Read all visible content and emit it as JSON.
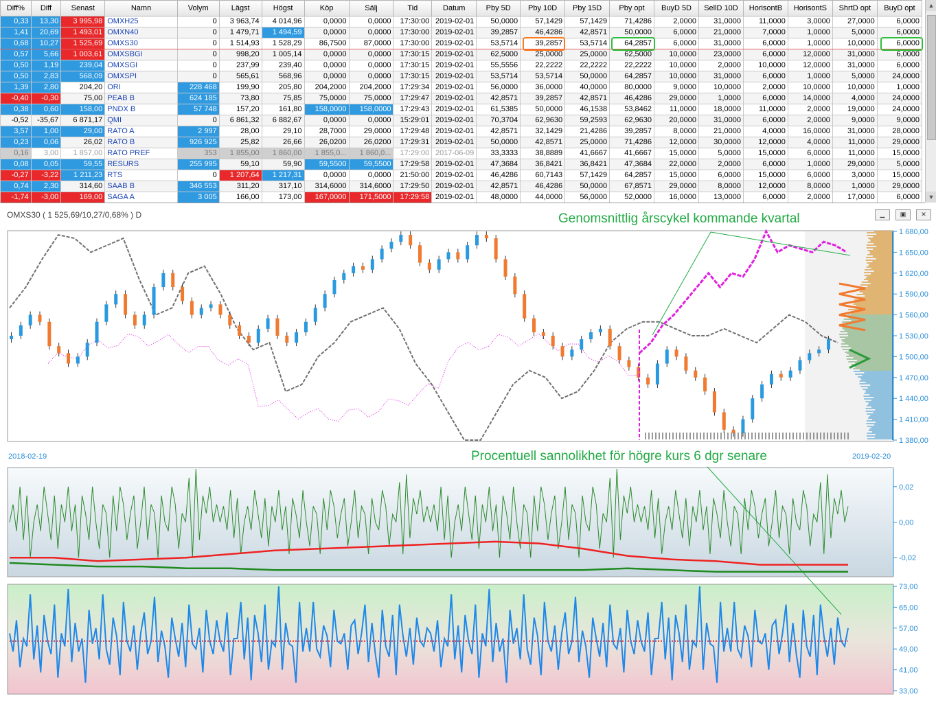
{
  "table": {
    "columns": [
      "Diff%",
      "Diff",
      "Senast",
      "Namn",
      "Volym",
      "Lägst",
      "Högst",
      "Köp",
      "Sälj",
      "Tid",
      "Datum",
      "Pby 5D",
      "Pby 10D",
      "Pby 15D",
      "Pby opt",
      "BuyD 5D",
      "SellD 10D",
      "HorisontB",
      "HorisontS",
      "ShrtD opt",
      "BuyD opt"
    ],
    "rows": [
      [
        "0,33",
        "13,30",
        "3 995,98",
        "OMXH25",
        "0",
        "3 963,74",
        "4 014,96",
        "0,0000",
        "0,0000",
        "17:30:00",
        "2019-02-01",
        "50,0000",
        "57,1429",
        "57,1429",
        "71,4286",
        "2,0000",
        "31,0000",
        "11,0000",
        "3,0000",
        "27,0000",
        "6,0000"
      ],
      [
        "1,41",
        "20,69",
        "1 493,01",
        "OMXN40",
        "0",
        "1 479,71",
        "1 494,59",
        "0,0000",
        "0,0000",
        "17:30:00",
        "2019-02-01",
        "39,2857",
        "46,4286",
        "42,8571",
        "50,0000",
        "6,0000",
        "21,0000",
        "7,0000",
        "1,0000",
        "5,0000",
        "6,0000"
      ],
      [
        "0,68",
        "10,27",
        "1 525,69",
        "OMXS30",
        "0",
        "1 514,93",
        "1 528,29",
        "86,7500",
        "87,0000",
        "17:30:00",
        "2019-02-01",
        "53,5714",
        "39,2857",
        "53,5714",
        "64,2857",
        "6,0000",
        "31,0000",
        "6,0000",
        "1,0000",
        "10,0000",
        "6,0000"
      ],
      [
        "0,57",
        "5,66",
        "1 003,61",
        "OMXSBGI",
        "0",
        "998,20",
        "1 005,14",
        "0,0000",
        "0,0000",
        "17:30:15",
        "2019-02-01",
        "62,5000",
        "25,0000",
        "25,0000",
        "62,5000",
        "10,0000",
        "23,0000",
        "6,0000",
        "12,0000",
        "31,0000",
        "6,0000"
      ],
      [
        "0,50",
        "1,19",
        "239,04",
        "OMXSGI",
        "0",
        "237,99",
        "239,40",
        "0,0000",
        "0,0000",
        "17:30:15",
        "2019-02-01",
        "55,5556",
        "22,2222",
        "22,2222",
        "22,2222",
        "10,0000",
        "2,0000",
        "10,0000",
        "12,0000",
        "31,0000",
        "6,0000"
      ],
      [
        "0,50",
        "2,83",
        "568,09",
        "OMXSPI",
        "0",
        "565,61",
        "568,96",
        "0,0000",
        "0,0000",
        "17:30:15",
        "2019-02-01",
        "53,5714",
        "53,5714",
        "50,0000",
        "64,2857",
        "10,0000",
        "31,0000",
        "6,0000",
        "1,0000",
        "5,0000",
        "24,0000"
      ],
      [
        "1,39",
        "2,80",
        "204,20",
        "ORI",
        "228 468",
        "199,90",
        "205,80",
        "204,2000",
        "204,2000",
        "17:29:34",
        "2019-02-01",
        "56,0000",
        "36,0000",
        "40,0000",
        "80,0000",
        "9,0000",
        "10,0000",
        "2,0000",
        "10,0000",
        "10,0000",
        "1,0000"
      ],
      [
        "-0,40",
        "-0,30",
        "75,00",
        "PEAB B",
        "624 185",
        "73,80",
        "75,85",
        "75,0000",
        "75,0000",
        "17:29:47",
        "2019-02-01",
        "42,8571",
        "39,2857",
        "42,8571",
        "46,4286",
        "29,0000",
        "1,0000",
        "6,0000",
        "14,0000",
        "4,0000",
        "24,0000"
      ],
      [
        "0,38",
        "0,60",
        "158,00",
        "PNDX B",
        "57 748",
        "157,20",
        "161,80",
        "158,0000",
        "158,0000",
        "17:29:43",
        "2019-02-01",
        "61,5385",
        "50,0000",
        "46,1538",
        "53,8462",
        "11,0000",
        "18,0000",
        "11,0000",
        "2,0000",
        "19,0000",
        "24,0000"
      ],
      [
        "-0,52",
        "-35,67",
        "6 871,17",
        "QMI",
        "0",
        "6 861,32",
        "6 882,67",
        "0,0000",
        "0,0000",
        "15:29:01",
        "2019-02-01",
        "70,3704",
        "62,9630",
        "59,2593",
        "62,9630",
        "20,0000",
        "31,0000",
        "6,0000",
        "2,0000",
        "9,0000",
        "9,0000"
      ],
      [
        "3,57",
        "1,00",
        "29,00",
        "RATO A",
        "2 997",
        "28,00",
        "29,10",
        "28,7000",
        "29,0000",
        "17:29:48",
        "2019-02-01",
        "42,8571",
        "32,1429",
        "21,4286",
        "39,2857",
        "8,0000",
        "21,0000",
        "4,0000",
        "16,0000",
        "31,0000",
        "28,0000"
      ],
      [
        "0,23",
        "0,06",
        "26,02",
        "RATO B",
        "926 925",
        "25,82",
        "26,66",
        "26,0200",
        "26,0200",
        "17:29:31",
        "2019-02-01",
        "50,0000",
        "42,8571",
        "25,0000",
        "71,4286",
        "12,0000",
        "30,0000",
        "12,0000",
        "4,0000",
        "11,0000",
        "29,0000"
      ],
      [
        "0,16",
        "3,00",
        "1 857,00",
        "RATO PREF",
        "353",
        "1 855,00",
        "1 860,00",
        "1 855,0...",
        "1 860,0...",
        "17:29:00",
        "2017-06-09",
        "33,3333",
        "38,8889",
        "41,6667",
        "41,6667",
        "15,0000",
        "5,0000",
        "15,0000",
        "6,0000",
        "11,0000",
        "15,0000"
      ],
      [
        "0,08",
        "0,05",
        "59,55",
        "RESURS",
        "255 995",
        "59,10",
        "59,90",
        "59,5500",
        "59,5500",
        "17:29:58",
        "2019-02-01",
        "47,3684",
        "36,8421",
        "36,8421",
        "47,3684",
        "22,0000",
        "2,0000",
        "6,0000",
        "1,0000",
        "29,0000",
        "5,0000"
      ],
      [
        "-0,27",
        "-3,22",
        "1 211,23",
        "RTS",
        "0",
        "1 207,64",
        "1 217,31",
        "0,0000",
        "0,0000",
        "21:50:00",
        "2019-02-01",
        "46,4286",
        "60,7143",
        "57,1429",
        "64,2857",
        "15,0000",
        "6,0000",
        "15,0000",
        "6,0000",
        "3,0000",
        "15,0000"
      ],
      [
        "0,74",
        "2,30",
        "314,60",
        "SAAB B",
        "346 553",
        "311,20",
        "317,10",
        "314,6000",
        "314,6000",
        "17:29:50",
        "2019-02-01",
        "42,8571",
        "46,4286",
        "50,0000",
        "67,8571",
        "29,0000",
        "8,0000",
        "12,0000",
        "8,0000",
        "1,0000",
        "29,0000"
      ],
      [
        "-1,74",
        "-3,00",
        "169,00",
        "SAGA A",
        "3 005",
        "166,00",
        "173,00",
        "167,0000",
        "171,5000",
        "17:29:58",
        "2019-02-01",
        "48,0000",
        "44,0000",
        "56,0000",
        "52,0000",
        "16,0000",
        "13,0000",
        "6,0000",
        "2,0000",
        "17,0000",
        "6,0000"
      ]
    ],
    "cell_styles": [
      [
        "b-blue",
        "b-blue",
        "b-red",
        "",
        "",
        "",
        "",
        "",
        "",
        "",
        "",
        "",
        "",
        "",
        "",
        "",
        "",
        "",
        "",
        "",
        ""
      ],
      [
        "b-blue",
        "b-blue",
        "b-red",
        "",
        "",
        "",
        "b-blue",
        "",
        "",
        "",
        "",
        "",
        "",
        "",
        "",
        "",
        "",
        "",
        "",
        "",
        ""
      ],
      [
        "b-blue",
        "b-blue",
        "b-red",
        "",
        "",
        "",
        "",
        "",
        "",
        "",
        "",
        "",
        "",
        "",
        "",
        "",
        "",
        "",
        "",
        "",
        ""
      ],
      [
        "b-blue",
        "b-blue",
        "b-red",
        "",
        "",
        "",
        "",
        "",
        "",
        "",
        "",
        "",
        "",
        "",
        "",
        "",
        "",
        "",
        "",
        "",
        ""
      ],
      [
        "b-blue",
        "b-blue",
        "b-blue",
        "",
        "",
        "",
        "",
        "",
        "",
        "",
        "",
        "",
        "",
        "",
        "",
        "",
        "",
        "",
        "",
        "",
        ""
      ],
      [
        "b-blue",
        "b-blue",
        "b-blue",
        "",
        "",
        "",
        "",
        "",
        "",
        "",
        "",
        "",
        "",
        "",
        "",
        "",
        "",
        "",
        "",
        "",
        ""
      ],
      [
        "b-blue",
        "b-blue",
        "",
        "",
        "b-blue",
        "",
        "",
        "",
        "",
        "",
        "",
        "",
        "",
        "",
        "",
        "",
        "",
        "",
        "",
        "",
        ""
      ],
      [
        "b-red",
        "b-red",
        "",
        "",
        "b-blue",
        "",
        "",
        "",
        "",
        "",
        "",
        "",
        "",
        "",
        "",
        "",
        "",
        "",
        "",
        "",
        ""
      ],
      [
        "b-blue",
        "b-blue",
        "b-blue",
        "",
        "b-blue",
        "",
        "",
        "b-blue",
        "b-blue",
        "",
        "",
        "",
        "",
        "",
        "",
        "",
        "",
        "",
        "",
        "",
        ""
      ],
      [
        "",
        "",
        "",
        "",
        "",
        "",
        "",
        "",
        "",
        "",
        "",
        "",
        "",
        "",
        "",
        "",
        "",
        "",
        "",
        "",
        ""
      ],
      [
        "b-blue",
        "b-blue",
        "b-blue",
        "",
        "b-blue",
        "",
        "",
        "",
        "",
        "",
        "",
        "",
        "",
        "",
        "",
        "",
        "",
        "",
        "",
        "",
        ""
      ],
      [
        "b-blue",
        "b-blue",
        "",
        "",
        "b-blue",
        "",
        "",
        "",
        "",
        "",
        "",
        "",
        "",
        "",
        "",
        "",
        "",
        "",
        "",
        "",
        ""
      ],
      [
        "b-grey",
        "t-grey",
        "t-grey",
        "",
        "b-grey",
        "b-grey",
        "b-grey",
        "b-grey",
        "b-grey",
        "t-grey",
        "t-grey",
        "",
        "",
        "",
        "",
        "",
        "",
        "",
        "",
        "",
        ""
      ],
      [
        "b-blue",
        "b-blue",
        "b-blue",
        "",
        "b-blue",
        "",
        "",
        "b-blue",
        "b-blue",
        "",
        "",
        "",
        "",
        "",
        "",
        "",
        "",
        "",
        "",
        "",
        ""
      ],
      [
        "b-red",
        "b-red",
        "b-blue",
        "",
        "",
        "b-red",
        "b-blue",
        "",
        "",
        "",
        "",
        "",
        "",
        "",
        "",
        "",
        "",
        "",
        "",
        "",
        ""
      ],
      [
        "b-blue",
        "b-blue",
        "",
        "",
        "b-blue",
        "",
        "",
        "",
        "",
        "",
        "",
        "",
        "",
        "",
        "",
        "",
        "",
        "",
        "",
        "",
        ""
      ],
      [
        "b-red",
        "b-red",
        "b-red",
        "",
        "b-blue",
        "",
        "",
        "b-red",
        "b-red",
        "b-red",
        "",
        "",
        "",
        "",
        "",
        "",
        "",
        "",
        "",
        "",
        ""
      ]
    ],
    "selected_row": 2
  },
  "chart_window": {
    "title": "OMXS30 ( 1 525,69/10,27/0,68% )  D",
    "buttons": [
      "minimize",
      "restore",
      "close"
    ],
    "annotation_top": "Genomsnittlig årscykel kommande kvartal",
    "annotation_mid": "Procentuell sannolikhet för högre kurs 6 dgr senare",
    "date_start": "2018-02-19",
    "date_end": "2019-02-20"
  },
  "colors": {
    "blue_cell": "#2f9ae0",
    "red_cell": "#e8282a",
    "up_candle": "#2a9ae0",
    "down_candle": "#f07a30",
    "cycle_line": "#e020e0",
    "avg_line": "#707070",
    "prob_line": "#1e88e8",
    "osc_line": "#2a8a2a",
    "annotation": "#22aa44"
  },
  "chart_data": [
    {
      "type": "line",
      "name": "OMXS30 price",
      "yaxis_ticks": [
        "1 680,00",
        "1 650,00",
        "1 620,00",
        "1 590,00",
        "1 560,00",
        "1 530,00",
        "1 500,00",
        "1 470,00",
        "1 440,00",
        "1 410,00",
        "1 380,00"
      ],
      "ylim": [
        1380,
        1680
      ],
      "close": [
        1530,
        1545,
        1560,
        1550,
        1515,
        1505,
        1490,
        1500,
        1520,
        1550,
        1575,
        1590,
        1560,
        1545,
        1560,
        1600,
        1620,
        1600,
        1580,
        1560,
        1570,
        1575,
        1560,
        1545,
        1530,
        1520,
        1540,
        1555,
        1530,
        1520,
        1535,
        1550,
        1570,
        1590,
        1610,
        1620,
        1630,
        1625,
        1640,
        1655,
        1665,
        1675,
        1660,
        1635,
        1625,
        1640,
        1650,
        1640,
        1660,
        1675,
        1670,
        1640,
        1615,
        1590,
        1555,
        1535,
        1530,
        1515,
        1500,
        1510,
        1525,
        1535,
        1540,
        1515,
        1495,
        1485,
        1470,
        1460,
        1490,
        1510,
        1500,
        1480,
        1470,
        1450,
        1420,
        1395,
        1390,
        1410,
        1440,
        1460,
        1475,
        1470,
        1480,
        1495,
        1505,
        1510,
        1525
      ],
      "cycle_projection": [
        1505,
        1520,
        1545,
        1560,
        1580,
        1600,
        1620,
        1600,
        1620,
        1615,
        1640,
        1680,
        1650,
        1660,
        1655,
        1650,
        1665,
        1660,
        1650
      ],
      "prior_year_overlay": [
        1570,
        1600,
        1640,
        1675,
        1670,
        1650,
        1660,
        1670,
        1610,
        1560,
        1570,
        1620,
        1630,
        1590,
        1540,
        1510,
        1520,
        1450,
        1460,
        1500,
        1520,
        1550,
        1560,
        1570,
        1540,
        1490,
        1460,
        1420,
        1380,
        1380,
        1420,
        1460,
        1480,
        1470,
        1440,
        1450,
        1480,
        1520,
        1540,
        1550,
        1550,
        1540,
        1530,
        1530,
        1540,
        1530,
        1520,
        1540,
        1560,
        1550,
        1530,
        1520
      ],
      "cycle_side_ticks": [
        1605,
        1598,
        1590,
        1582,
        1575,
        1568,
        1560,
        1553,
        1545,
        1538
      ]
    },
    {
      "type": "line",
      "name": "Momentum",
      "yaxis_ticks": [
        "0,02",
        "0,00",
        "-0,02"
      ],
      "ylim": [
        -0.03,
        0.03
      ],
      "values": [
        0.0,
        0.01,
        -0.005,
        0.02,
        -0.01,
        0.015,
        -0.02,
        0.0,
        0.01,
        -0.005,
        0.02,
        0.005,
        -0.01,
        0.015,
        -0.015,
        0.01,
        0.0,
        0.02,
        -0.005,
        0.01,
        -0.02,
        0.015,
        0.005,
        -0.01,
        0.02,
        0.0,
        -0.015,
        0.01,
        0.005,
        -0.02,
        0.015,
        -0.005,
        0.02,
        0.01,
        -0.01,
        0.005,
        0.015,
        -0.015,
        0.0,
        0.02,
        -0.01,
        0.01,
        0.005,
        -0.02,
        0.015,
        0.0,
        -0.005,
        0.02,
        0.01,
        -0.015,
        0.005,
        0.0,
        0.025,
        -0.02,
        0.03,
        -0.01,
        0.015,
        0.005,
        0.02,
        0.0,
        0.01
      ],
      "red_band": [
        -0.02,
        -0.02,
        -0.022,
        -0.021,
        -0.02,
        -0.018,
        -0.016,
        -0.015,
        -0.014,
        -0.013,
        -0.012,
        -0.011,
        -0.012,
        -0.015,
        -0.019,
        -0.021,
        -0.022,
        -0.024,
        -0.024,
        -0.024
      ],
      "green_band": [
        -0.023,
        -0.024,
        -0.025,
        -0.025,
        -0.026,
        -0.026,
        -0.027,
        -0.027,
        -0.027,
        -0.027,
        -0.027,
        -0.027,
        -0.027,
        -0.027,
        -0.026,
        -0.027,
        -0.028,
        -0.028,
        -0.028,
        -0.028
      ]
    },
    {
      "type": "line",
      "name": "Probability higher close 6 days later (%)",
      "yaxis_ticks": [
        "73,00",
        "65,00",
        "57,00",
        "49,00",
        "41,00",
        "33,00"
      ],
      "ylim": [
        33,
        73
      ],
      "threshold": 52,
      "values": [
        55,
        48,
        60,
        42,
        53,
        50,
        70,
        45,
        58,
        40,
        62,
        52,
        47,
        66,
        38,
        55,
        50,
        72,
        44,
        59,
        48,
        53,
        36,
        64,
        51,
        57,
        45,
        70,
        49,
        43,
        61,
        54,
        39,
        67,
        52,
        48,
        58,
        41,
        55,
        63,
        47,
        52,
        69,
        44,
        56,
        50,
        38,
        61,
        53,
        46,
        59,
        42,
        66,
        51,
        49,
        57,
        40,
        64,
        52,
        47,
        60
      ]
    }
  ]
}
